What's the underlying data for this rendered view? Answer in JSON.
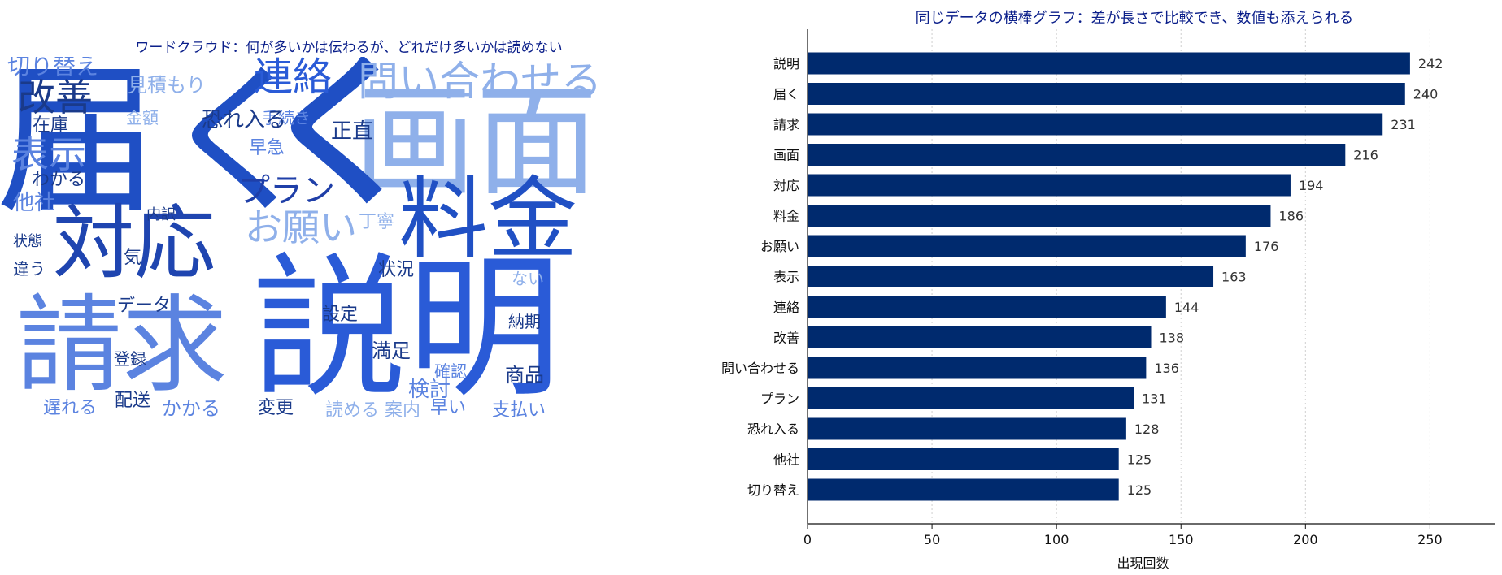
{
  "cloud_title": "ワードクラウド：何が多いかは伝わるが、どれだけ多いかは読めない",
  "colors": {
    "title": "#0b1f8a",
    "bar": "#002a6e",
    "axis": "#111111",
    "grid": "#cfcfcf",
    "cloud_palette": [
      "#1f3fa8",
      "#2a5bd7",
      "#5b83e0",
      "#8fb0ea"
    ]
  },
  "wordcloud": {
    "words": [
      {
        "text": "届く",
        "size": 200,
        "color": "#1f4fc4",
        "rotate": false
      },
      {
        "text": "画面",
        "size": 150,
        "color": "#8fb0ea"
      },
      {
        "text": "く",
        "size": 1,
        "color": "#1f4fc4"
      },
      {
        "text": "説明",
        "size": 190,
        "color": "#2a5bd7"
      },
      {
        "text": "料金",
        "size": 110,
        "color": "#2050c4"
      },
      {
        "text": "対応",
        "size": 100,
        "color": "#1f45b0"
      },
      {
        "text": "請求",
        "size": 130,
        "color": "#5b83e0"
      },
      {
        "text": "問い合わせる",
        "size": 50,
        "color": "#8fb0ea"
      },
      {
        "text": "連絡",
        "size": 48,
        "color": "#2a5bd7"
      },
      {
        "text": "改善",
        "size": 46,
        "color": "#1a3a8a"
      },
      {
        "text": "表示",
        "size": 46,
        "color": "#5b83e0"
      },
      {
        "text": "プラン",
        "size": 40,
        "color": "#1f3fa8"
      },
      {
        "text": "お願い",
        "size": 46,
        "color": "#8fb0ea"
      },
      {
        "text": "切り替え",
        "size": 28,
        "color": "#5b83e0"
      },
      {
        "text": "見積もり",
        "size": 24,
        "color": "#8fb0ea"
      },
      {
        "text": "手続き",
        "size": 20,
        "color": "#5b83e0"
      },
      {
        "text": "恐れ入る",
        "size": 26,
        "color": "#1a3a8a"
      },
      {
        "text": "金額",
        "size": 20,
        "color": "#8fb0ea"
      },
      {
        "text": "在庫",
        "size": 22,
        "color": "#1a3a8a"
      },
      {
        "text": "正直",
        "size": 26,
        "color": "#1a3a8a"
      },
      {
        "text": "早急",
        "size": 22,
        "color": "#5b83e0"
      },
      {
        "text": "わかる",
        "size": 22,
        "color": "#1a3a8a"
      },
      {
        "text": "他社",
        "size": 26,
        "color": "#5b83e0"
      },
      {
        "text": "内訳",
        "size": 18,
        "color": "#1a3a8a"
      },
      {
        "text": "丁寧",
        "size": 22,
        "color": "#8fb0ea"
      },
      {
        "text": "状態",
        "size": 18,
        "color": "#1a3a8a"
      },
      {
        "text": "気",
        "size": 22,
        "color": "#1a3a8a"
      },
      {
        "text": "違う",
        "size": 20,
        "color": "#1a3a8a"
      },
      {
        "text": "状況",
        "size": 22,
        "color": "#1a3a8a"
      },
      {
        "text": "ない",
        "size": 20,
        "color": "#8fb0ea"
      },
      {
        "text": "データ",
        "size": 22,
        "color": "#1a3a8a"
      },
      {
        "text": "設定",
        "size": 22,
        "color": "#1a3a8a"
      },
      {
        "text": "納期",
        "size": 20,
        "color": "#1a3a8a"
      },
      {
        "text": "登録",
        "size": 20,
        "color": "#1a3a8a"
      },
      {
        "text": "満足",
        "size": 24,
        "color": "#1a3a8a"
      },
      {
        "text": "確認",
        "size": 20,
        "color": "#5b83e0"
      },
      {
        "text": "商品",
        "size": 24,
        "color": "#1a3a8a"
      },
      {
        "text": "検討",
        "size": 26,
        "color": "#5b83e0"
      },
      {
        "text": "遅れる",
        "size": 22,
        "color": "#5b83e0"
      },
      {
        "text": "配送",
        "size": 22,
        "color": "#1a3a8a"
      },
      {
        "text": "かかる",
        "size": 24,
        "color": "#5b83e0"
      },
      {
        "text": "変更",
        "size": 22,
        "color": "#1a3a8a"
      },
      {
        "text": "読める",
        "size": 22,
        "color": "#8fb0ea"
      },
      {
        "text": "案内",
        "size": 22,
        "color": "#8fb0ea"
      },
      {
        "text": "早い",
        "size": 22,
        "color": "#5b83e0"
      },
      {
        "text": "支払い",
        "size": 22,
        "color": "#5b83e0"
      }
    ]
  },
  "chart_data": {
    "type": "bar",
    "orientation": "horizontal",
    "title": "同じデータの横棒グラフ：差が長さで比較でき、数値も添えられる",
    "xlabel": "出現回数",
    "ylabel": "",
    "categories": [
      "説明",
      "届く",
      "請求",
      "画面",
      "対応",
      "料金",
      "お願い",
      "表示",
      "連絡",
      "改善",
      "問い合わせる",
      "プラン",
      "恐れ入る",
      "他社",
      "切り替え"
    ],
    "values": [
      242,
      240,
      231,
      216,
      194,
      186,
      176,
      163,
      144,
      138,
      136,
      131,
      128,
      125,
      125
    ],
    "xlim": [
      0,
      276
    ],
    "xticks": [
      0,
      50,
      100,
      150,
      200,
      250
    ],
    "grid": "x-dotted",
    "data_labels": true
  }
}
